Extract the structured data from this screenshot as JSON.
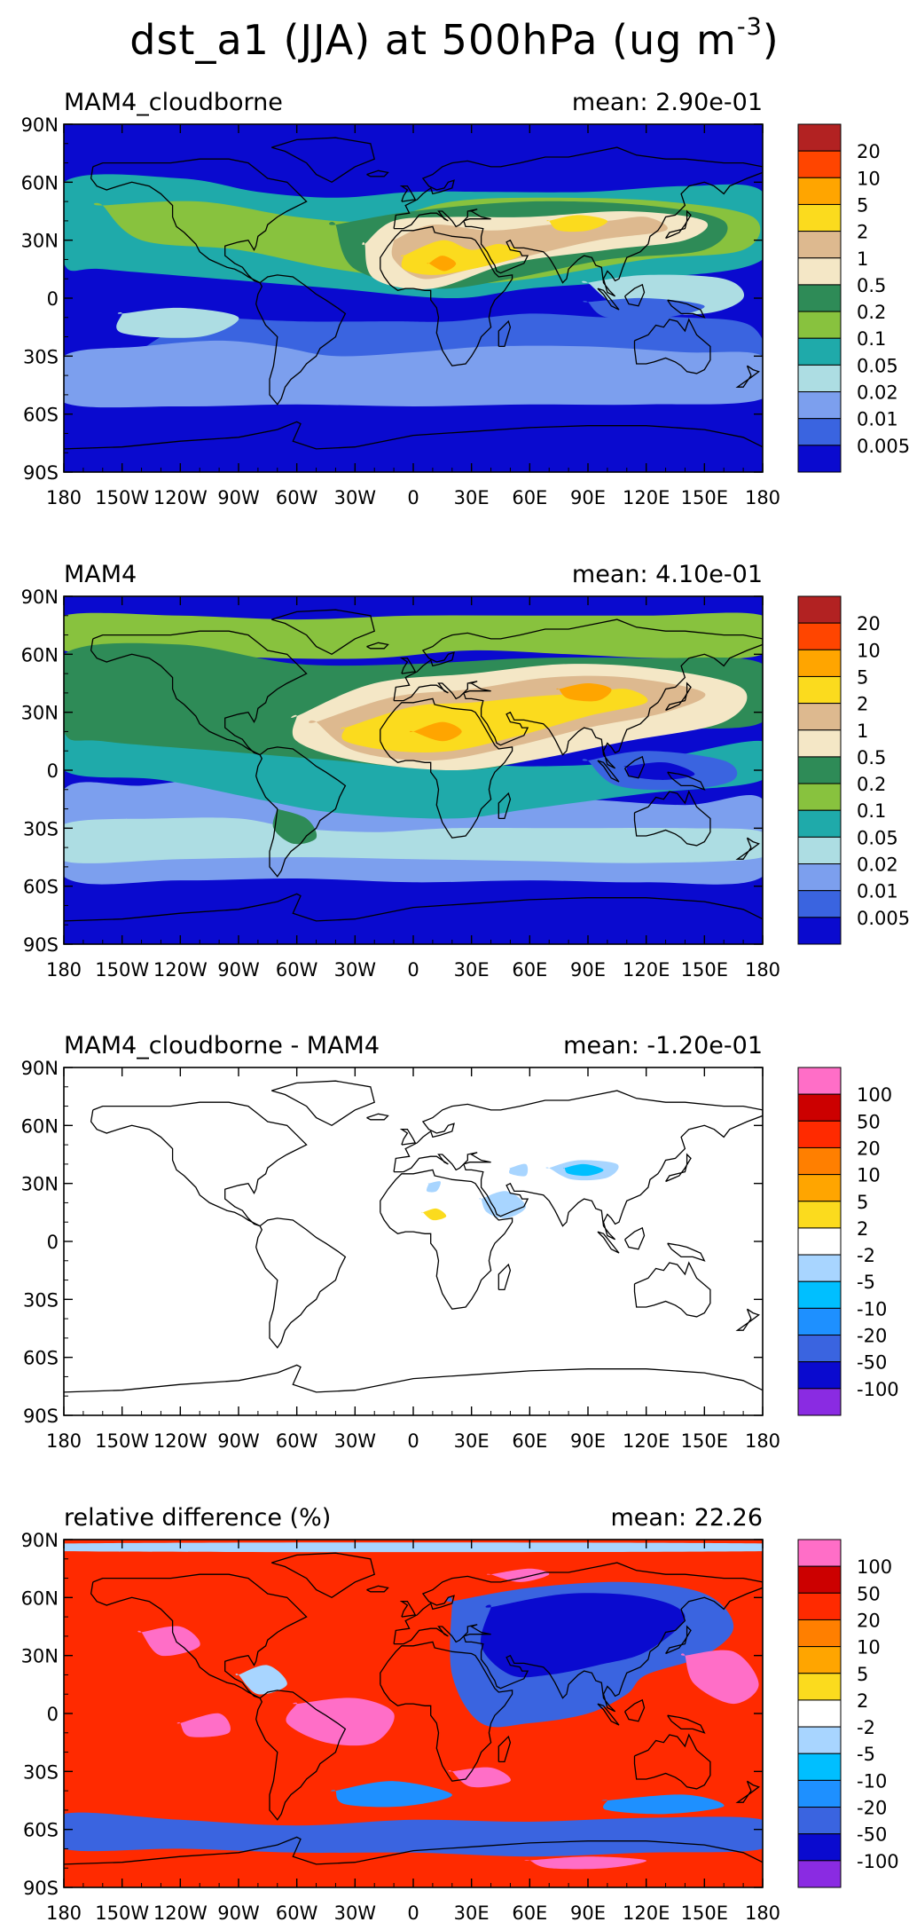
{
  "figure": {
    "title_main": "dst_a1 (JJA) at 500hPa (ug m",
    "title_exponent": "-3",
    "title_close": ")"
  },
  "lon_ticks": [
    "180",
    "150W",
    "120W",
    "90W",
    "60W",
    "30W",
    "0",
    "30E",
    "60E",
    "90E",
    "120E",
    "150E",
    "180"
  ],
  "lat_ticks": [
    "90N",
    "60N",
    "30N",
    "0",
    "30S",
    "60S",
    "90S"
  ],
  "colors": {
    "conc": [
      "#0A0ACF",
      "#3A64E0",
      "#7C9FEE",
      "#ADDDE3",
      "#1FAAAA",
      "#88C23E",
      "#2E8B57",
      "#F4E7C6",
      "#DDB98F",
      "#FBDB1E",
      "#FFA500",
      "#FF4500",
      "#B22222"
    ],
    "diff": [
      "#8A2BE2",
      "#0A0ACF",
      "#3A64E0",
      "#1E90FF",
      "#00BFFF",
      "#A8D5FF",
      "#FFFFFF",
      "#FBDB1E",
      "#FFA500",
      "#FF7F00",
      "#FF2A00",
      "#CC0000",
      "#FF6EC7"
    ],
    "land_outline": "#000000"
  },
  "panels": [
    {
      "name": "MAM4_cloudborne",
      "mean": "mean: 2.90e-01",
      "legend_type": "conc",
      "legend_labels": [
        "20",
        "10",
        "5",
        "2",
        "1",
        "0.5",
        "0.2",
        "0.1",
        "0.05",
        "0.02",
        "0.01",
        "0.005"
      ]
    },
    {
      "name": "MAM4",
      "mean": "mean: 4.10e-01",
      "legend_type": "conc",
      "legend_labels": [
        "20",
        "10",
        "5",
        "2",
        "1",
        "0.5",
        "0.2",
        "0.1",
        "0.05",
        "0.02",
        "0.01",
        "0.005"
      ]
    },
    {
      "name": "MAM4_cloudborne - MAM4",
      "mean": "mean: -1.20e-01",
      "legend_type": "diff",
      "legend_labels": [
        "100",
        "50",
        "20",
        "10",
        "5",
        "2",
        "-2",
        "-5",
        "-10",
        "-20",
        "-50",
        "-100"
      ]
    },
    {
      "name": "relative difference (%)",
      "mean": "mean: 22.26",
      "legend_type": "diff",
      "legend_labels": [
        "100",
        "50",
        "20",
        "10",
        "5",
        "2",
        "-2",
        "-5",
        "-10",
        "-20",
        "-50",
        "-100"
      ]
    }
  ]
}
